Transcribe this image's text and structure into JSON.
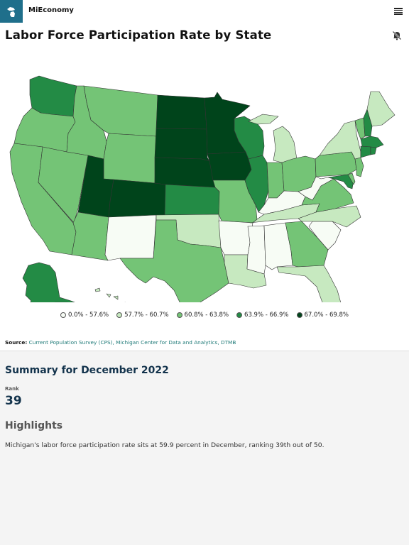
{
  "header": {
    "app_name": "MiEconomy",
    "logo_icon": "michigan-icon",
    "menu_icon": "hamburger-menu-icon"
  },
  "chart": {
    "title": "Labor Force Participation Rate by State",
    "mute_icon": "muted-bell-icon",
    "legend": [
      {
        "label": "0.0% - 57.6%",
        "color": "#f7fcf5"
      },
      {
        "label": "57.7% - 60.7%",
        "color": "#c7e9c0"
      },
      {
        "label": "60.8% - 63.8%",
        "color": "#74c476"
      },
      {
        "label": "63.9% - 66.9%",
        "color": "#238b45"
      },
      {
        "label": "67.0% - 69.8%",
        "color": "#00441b"
      }
    ],
    "source_label": "Source:",
    "source_text": "Current Population Survey (CPS), Michigan Center for Data and Analytics, DTMB"
  },
  "chart_data": {
    "type": "choropleth",
    "title": "Labor Force Participation Rate by State",
    "classes": [
      "0.0% - 57.6%",
      "57.7% - 60.7%",
      "60.8% - 63.8%",
      "63.9% - 66.9%",
      "67.0% - 69.8%"
    ],
    "states_by_class": {
      "0.0% - 57.6%": [
        "NM",
        "AR",
        "MS",
        "AL",
        "SC",
        "WV",
        "KY"
      ],
      "57.7% - 60.7%": [
        "MI",
        "NY",
        "ME",
        "OK",
        "LA",
        "TN",
        "NC",
        "FL",
        "HI"
      ],
      "60.8% - 63.8%": [
        "CA",
        "OR",
        "NV",
        "ID",
        "MT",
        "WY",
        "AZ",
        "TX",
        "MO",
        "GA",
        "VA",
        "OH",
        "IN",
        "PA",
        "NJ",
        "DE",
        "VT"
      ],
      "63.9% - 66.9%": [
        "WA",
        "AK",
        "KS",
        "WI",
        "IL",
        "MD",
        "NH",
        "MA",
        "CT",
        "RI"
      ],
      "67.0% - 69.8%": [
        "ND",
        "SD",
        "NE",
        "MN",
        "IA",
        "UT",
        "CO"
      ]
    }
  },
  "summary": {
    "heading": "Summary for December 2022",
    "rank_label": "Rank",
    "rank_value": "39",
    "highlights_heading": "Highlights",
    "highlight_text": "Michigan's labor force participation rate sits at 59.9 percent in December, ranking 39th out of 50."
  }
}
